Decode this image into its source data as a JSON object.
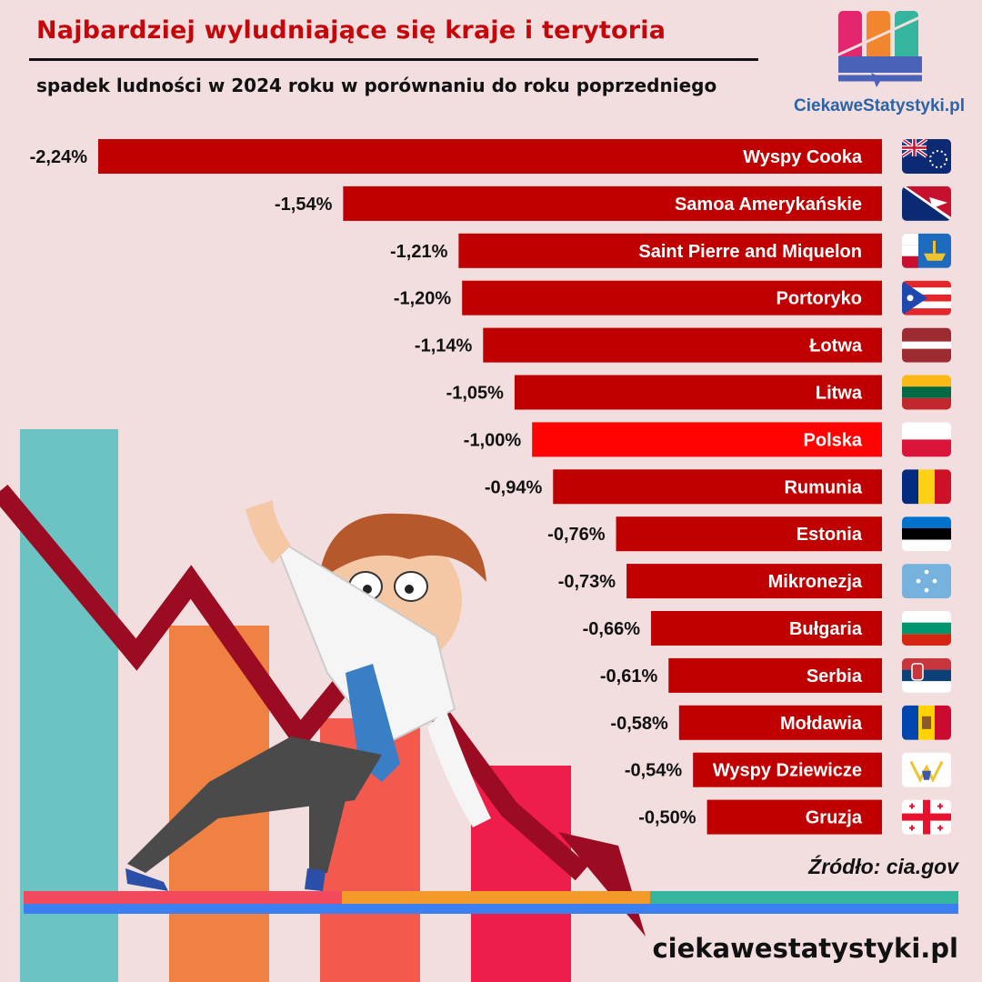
{
  "header": {
    "title": "Najbardziej wyludniające się kraje i terytoria",
    "subtitle": "spadek ludności w 2024 roku w porównaniu do roku poprzedniego"
  },
  "brand": {
    "logo_text": "CiekaweStatystyki.pl",
    "footer_url": "ciekawestatystyki.pl",
    "colors": {
      "pink": "#e4266f",
      "orange": "#f2862f",
      "teal": "#36b59e",
      "blue": "#4a63b8"
    }
  },
  "source": "Źródło: cia.gov",
  "chart_data": {
    "type": "bar",
    "orientation": "horizontal",
    "title": "Najbardziej wyludniające się kraje i terytoria",
    "subtitle": "spadek ludności w 2024 roku w porównaniu do roku poprzedniego",
    "xlabel": "",
    "ylabel": "",
    "xlim": [
      -2.24,
      0
    ],
    "categories": [
      "Wyspy Cooka",
      "Samoa Amerykańskie",
      "Saint Pierre and Miquelon",
      "Portoryko",
      "Łotwa",
      "Litwa",
      "Polska",
      "Rumunia",
      "Estonia",
      "Mikronezja",
      "Bułgaria",
      "Serbia",
      "Mołdawia",
      "Wyspy Dziewicze",
      "Gruzja"
    ],
    "values": [
      -2.24,
      -1.54,
      -1.21,
      -1.2,
      -1.14,
      -1.05,
      -1.0,
      -0.94,
      -0.76,
      -0.73,
      -0.66,
      -0.61,
      -0.58,
      -0.54,
      -0.5
    ],
    "value_labels": [
      "-2,24%",
      "-1,54%",
      "-1,21%",
      "-1,20%",
      "-1,14%",
      "-1,05%",
      "-1,00%",
      "-0,94%",
      "-0,76%",
      "-0,73%",
      "-0,66%",
      "-0,61%",
      "-0,58%",
      "-0,54%",
      "-0,50%"
    ],
    "bar_color": "#c00000",
    "highlight": {
      "category": "Polska",
      "color": "#ff0303"
    }
  }
}
